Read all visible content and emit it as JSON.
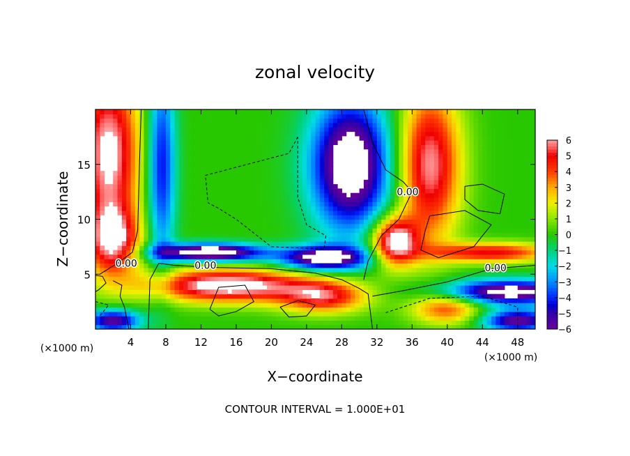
{
  "chart_data": {
    "type": "heatmap",
    "title": "zonal velocity",
    "xlabel": "X−coordinate",
    "ylabel": "Z−coordinate",
    "x_unit_label": "(×1000 m)",
    "z_unit_label": "(×1000 m)",
    "xlim": [
      0,
      50
    ],
    "ylim": [
      0,
      20
    ],
    "x_ticks": [
      4,
      8,
      12,
      16,
      20,
      24,
      28,
      32,
      36,
      40,
      44,
      48
    ],
    "y_ticks": [
      5,
      10,
      15
    ],
    "colorbar": {
      "min": -6,
      "max": 6,
      "ticks": [
        6,
        5,
        4,
        3,
        2,
        1,
        0,
        -1,
        -2,
        -3,
        -4,
        -5,
        -6
      ],
      "tick_labels": [
        "6",
        "5",
        "4",
        "3",
        "2",
        "1",
        "0",
        "−1",
        "−2",
        "−3",
        "−4",
        "−5",
        "−6"
      ]
    },
    "contour_labels": [
      {
        "text": "0.00",
        "x": 3.5,
        "z": 6.0
      },
      {
        "text": "0.00",
        "x": 12.5,
        "z": 5.8
      },
      {
        "text": "0.00",
        "x": 35.5,
        "z": 12.5
      },
      {
        "text": "0.00",
        "x": 45.5,
        "z": 5.6
      }
    ],
    "annotation": "CONTOUR INTERVAL = 1.000E+01",
    "grid": false
  }
}
